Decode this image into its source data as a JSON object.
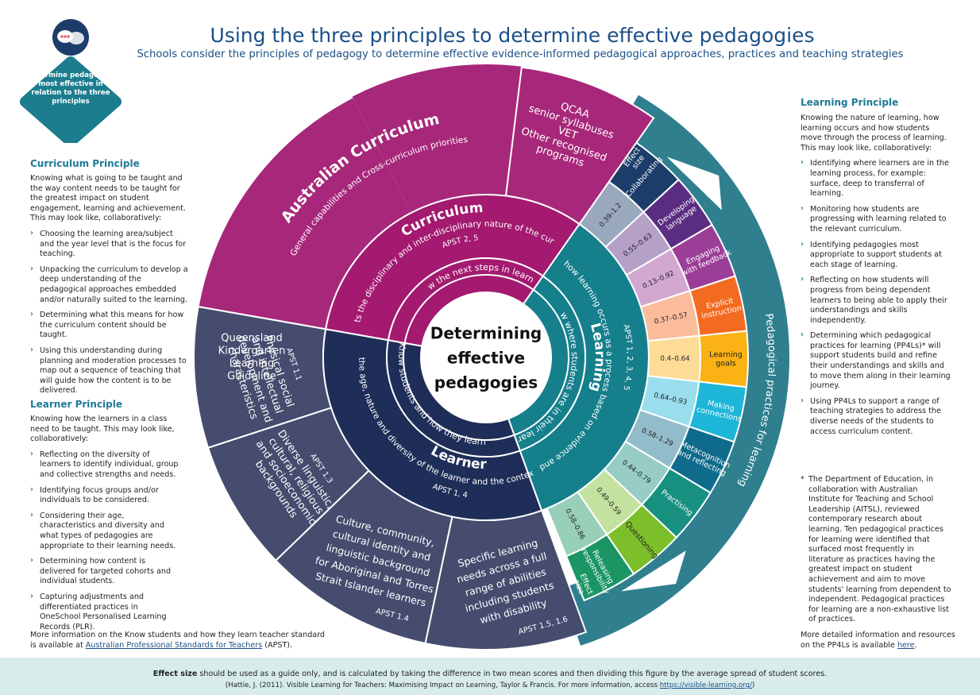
{
  "title": "Using the three principles to determine effective pedagogies",
  "subtitle": "Schools consider the principles of pedagogy to determine effective evidence-informed pedagogical approaches, practices and teaching strategies",
  "badge": {
    "icon": "chat-bubbles-icon",
    "text_1": "Determine pedagogies",
    "text_2": "most effective in",
    "text_3": "relation to the three",
    "text_4": "principles",
    "color": "#1b7d8e"
  },
  "curriculum_principle": {
    "heading": "Curriculum Principle",
    "intro": "Knowing what is going to be taught and the way content needs to be taught for the greatest impact on student engagement, learning and achievement. This may look like, collaboratively:",
    "items": [
      "Choosing the learning area/subject and the year level that is the focus for teaching.",
      "Unpacking the curriculum to develop a deep understanding of the pedagogical approaches embedded and/or naturally suited to the learning.",
      "Determining what this means for how the curriculum content should be taught.",
      "Using this understanding during planning and moderation processes to map out a sequence of teaching that will guide how the content is to be delivered."
    ]
  },
  "learner_principle": {
    "heading": "Learner Principle",
    "intro": "Knowing how the learners in a class need to be taught. This may look like, collaboratively:",
    "items": [
      "Reflecting on the diversity of learners to identify individual, group and collective strengths and needs.",
      "Identifying focus groups and/or individuals to be considered.",
      "Considering their age, characteristics and diversity and what types of pedagogies are appropriate to their learning needs.",
      "Determining how content is delivered for targeted cohorts and individual students.",
      "Capturing adjustments and differentiated practices in OneSchool Personalised Learning Records (PLR)."
    ],
    "more_info_1": "More information on the Know students and how they learn teacher standard",
    "more_info_2": "is available at",
    "link": "Australian Professional Standards for Teachers",
    "more_info_3": "(APST)."
  },
  "learning_principle": {
    "heading": "Learning Principle",
    "intro": "Knowing the nature of learning, how learning occurs and how students move through the process of learning. This may look like, collaboratively:",
    "items": [
      "Identifying where learners are in the learning process, for example: surface, deep to transferral of learning.",
      "Monitoring how students are progressing with learning related to the relevant curriculum.",
      "Identifying pedagogies most appropriate to support students at each stage of learning.",
      "Reflecting on how students will progress from being dependent learners to being able to apply their understandings and skills independently.",
      "Determining which pedagogical practices for learning (PP4Ls)* will support students build and refine their understandings and skills and to move them along in their learning journey.",
      "Using PP4Ls to support a range of teaching strategies to address the diverse needs of the students to access curriculum content."
    ]
  },
  "asterisk_note": "The Department of Education, in collaboration with Australian Institute for Teaching and School Leadership (AITSL), reviewed contemporary research about learning. Ten pedagogical practices for learning were identified that surfaced most frequently in literature as practices having the greatest impact on student achievement and aim to move students' learning from dependent to independent. Pedagogical practices for learning are a non-exhaustive list of practices.",
  "more_detail": {
    "text": "More detailed information and resources on the PP4Ls is available",
    "link": "here"
  },
  "bottom": {
    "effect_bold": "Effect size",
    "effect_text": "should be used as a guide only, and is calculated by taking the difference in two mean scores and then dividing this figure by the average spread of student scores.",
    "citation": "(Hattie, J. (2011). Visible Learning for Teachers: Maximising Impact on Learning, Taylor & Francis. For more information, access",
    "citation_link": "https://visible-learning.org/"
  },
  "wheel": {
    "center": [
      "Determining",
      "effective",
      "pedagogies"
    ],
    "inner_curriculum": "Know the next steps in learning",
    "inner_learner": "Know students and how they learn",
    "inner_learning": "Know where students are in their learning",
    "curriculum_label": "Curriculum",
    "curriculum_desc": "Pedagogy reflects the disciplinary and inter-disciplinary nature of the curriculum content",
    "curriculum_apst": "APST 2, 5",
    "learner_label": "Learner",
    "learner_desc": "Pedagogy is appropriate to the age, nature and diversity of the learner and the context in which they are learning",
    "learner_apst": "APST 1, 4",
    "learning_label": "Learning",
    "learning_desc": "Pedagogy recognises how learning occurs as a process based on evidence and the nature of learning",
    "learning_apst": "APST 1, 2, 3, 4, 5",
    "ac_title": "Australian Curriculum",
    "ac_sub": "General capabilities and Cross-curriculum priorities",
    "qcaa": [
      "QCAA",
      "senior syllabuses",
      "VET",
      "Other recognised",
      "programs"
    ],
    "qklg": [
      "Queensland",
      "Kindergarten",
      "Learning",
      "Guideline"
    ],
    "physical": [
      "Physical social",
      "and intellectual",
      "development and",
      "characteristics"
    ],
    "physical_apst": "APST 1.1",
    "diverse": [
      "Diverse linguistic,",
      "cultural, religious",
      "and socioeconomic",
      "backgrounds"
    ],
    "diverse_apst": "APST 1.3",
    "culture": [
      "Culture, community,",
      "cultural identity and",
      "linguistic background",
      "for Aboriginal and Torres",
      "Strait Islander learners"
    ],
    "culture_apst": "APST 1.4",
    "specific": [
      "Specific learning",
      "needs across a full",
      "range of abilities",
      "including students",
      "with disability"
    ],
    "specific_apst": "APST 1.5, 1.6",
    "pp4l_ring": "Pedagogical practices for learning",
    "effect_size_label": "Effect size",
    "effect_size_label_2": "Effect size"
  },
  "pp4l": [
    {
      "name": [
        "Collaborating"
      ],
      "effect": "0.39–1.2",
      "color": "#1c3d6a"
    },
    {
      "name": [
        "Developing",
        "language"
      ],
      "effect": "0.55–0.63",
      "color": "#5b2d82"
    },
    {
      "name": [
        "Engaging",
        "with feedback"
      ],
      "effect": "0.13–0.92",
      "color": "#9b3e98"
    },
    {
      "name": [
        "Explicit",
        "instruction"
      ],
      "effect": "0.37–0.57",
      "color": "#f36b21"
    },
    {
      "name": [
        "Learning",
        "goals"
      ],
      "effect": "0.4–0.64",
      "color": "#fbb215"
    },
    {
      "name": [
        "Making",
        "connections"
      ],
      "effect": "0.64–0.93",
      "color": "#1eb6d8"
    },
    {
      "name": [
        "Metacognition",
        "and reflecting"
      ],
      "effect": "0.58–1.29",
      "color": "#0f6b8c"
    },
    {
      "name": [
        "Practising"
      ],
      "effect": "0.44–0.79",
      "color": "#17907f"
    },
    {
      "name": [
        "Questioning"
      ],
      "effect": "0.49–0.59",
      "color": "#7cbf2a"
    },
    {
      "name": [
        "Releasing",
        "responsibility"
      ],
      "effect": "0.58–0.86",
      "color": "#1a9563"
    }
  ]
}
